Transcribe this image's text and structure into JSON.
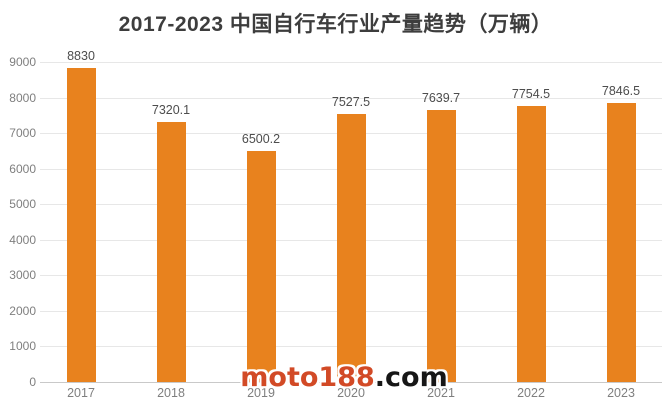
{
  "chart_data": {
    "type": "bar",
    "title": "2017-2023 中国自行车行业产量趋势（万辆）",
    "categories": [
      "2017",
      "2018",
      "2019",
      "2020",
      "2021",
      "2022",
      "2023"
    ],
    "values": [
      8830,
      7320.1,
      6500.2,
      7527.5,
      7639.7,
      7754.5,
      7846.5
    ],
    "value_labels": [
      "8830",
      "7320.1",
      "6500.2",
      "7527.5",
      "7639.7",
      "7754.5",
      "7846.5"
    ],
    "xlabel": "",
    "ylabel": "",
    "ylim": [
      0,
      9000
    ],
    "yticks": [
      0,
      1000,
      2000,
      3000,
      4000,
      5000,
      6000,
      7000,
      8000,
      9000
    ],
    "grid": true,
    "legend": null,
    "bar_color": "#e8821e",
    "gridline_color": "#e7e7e7",
    "axis_line_color": "#c9c9c9",
    "tick_label_color": "#7f7f7f",
    "value_label_color": "#4d4d4d",
    "title_color": "#3d3d3d"
  },
  "watermark": {
    "text_primary": "moto188",
    "text_secondary": ".com",
    "color_primary": "#d24a26",
    "color_secondary": "#161616"
  }
}
